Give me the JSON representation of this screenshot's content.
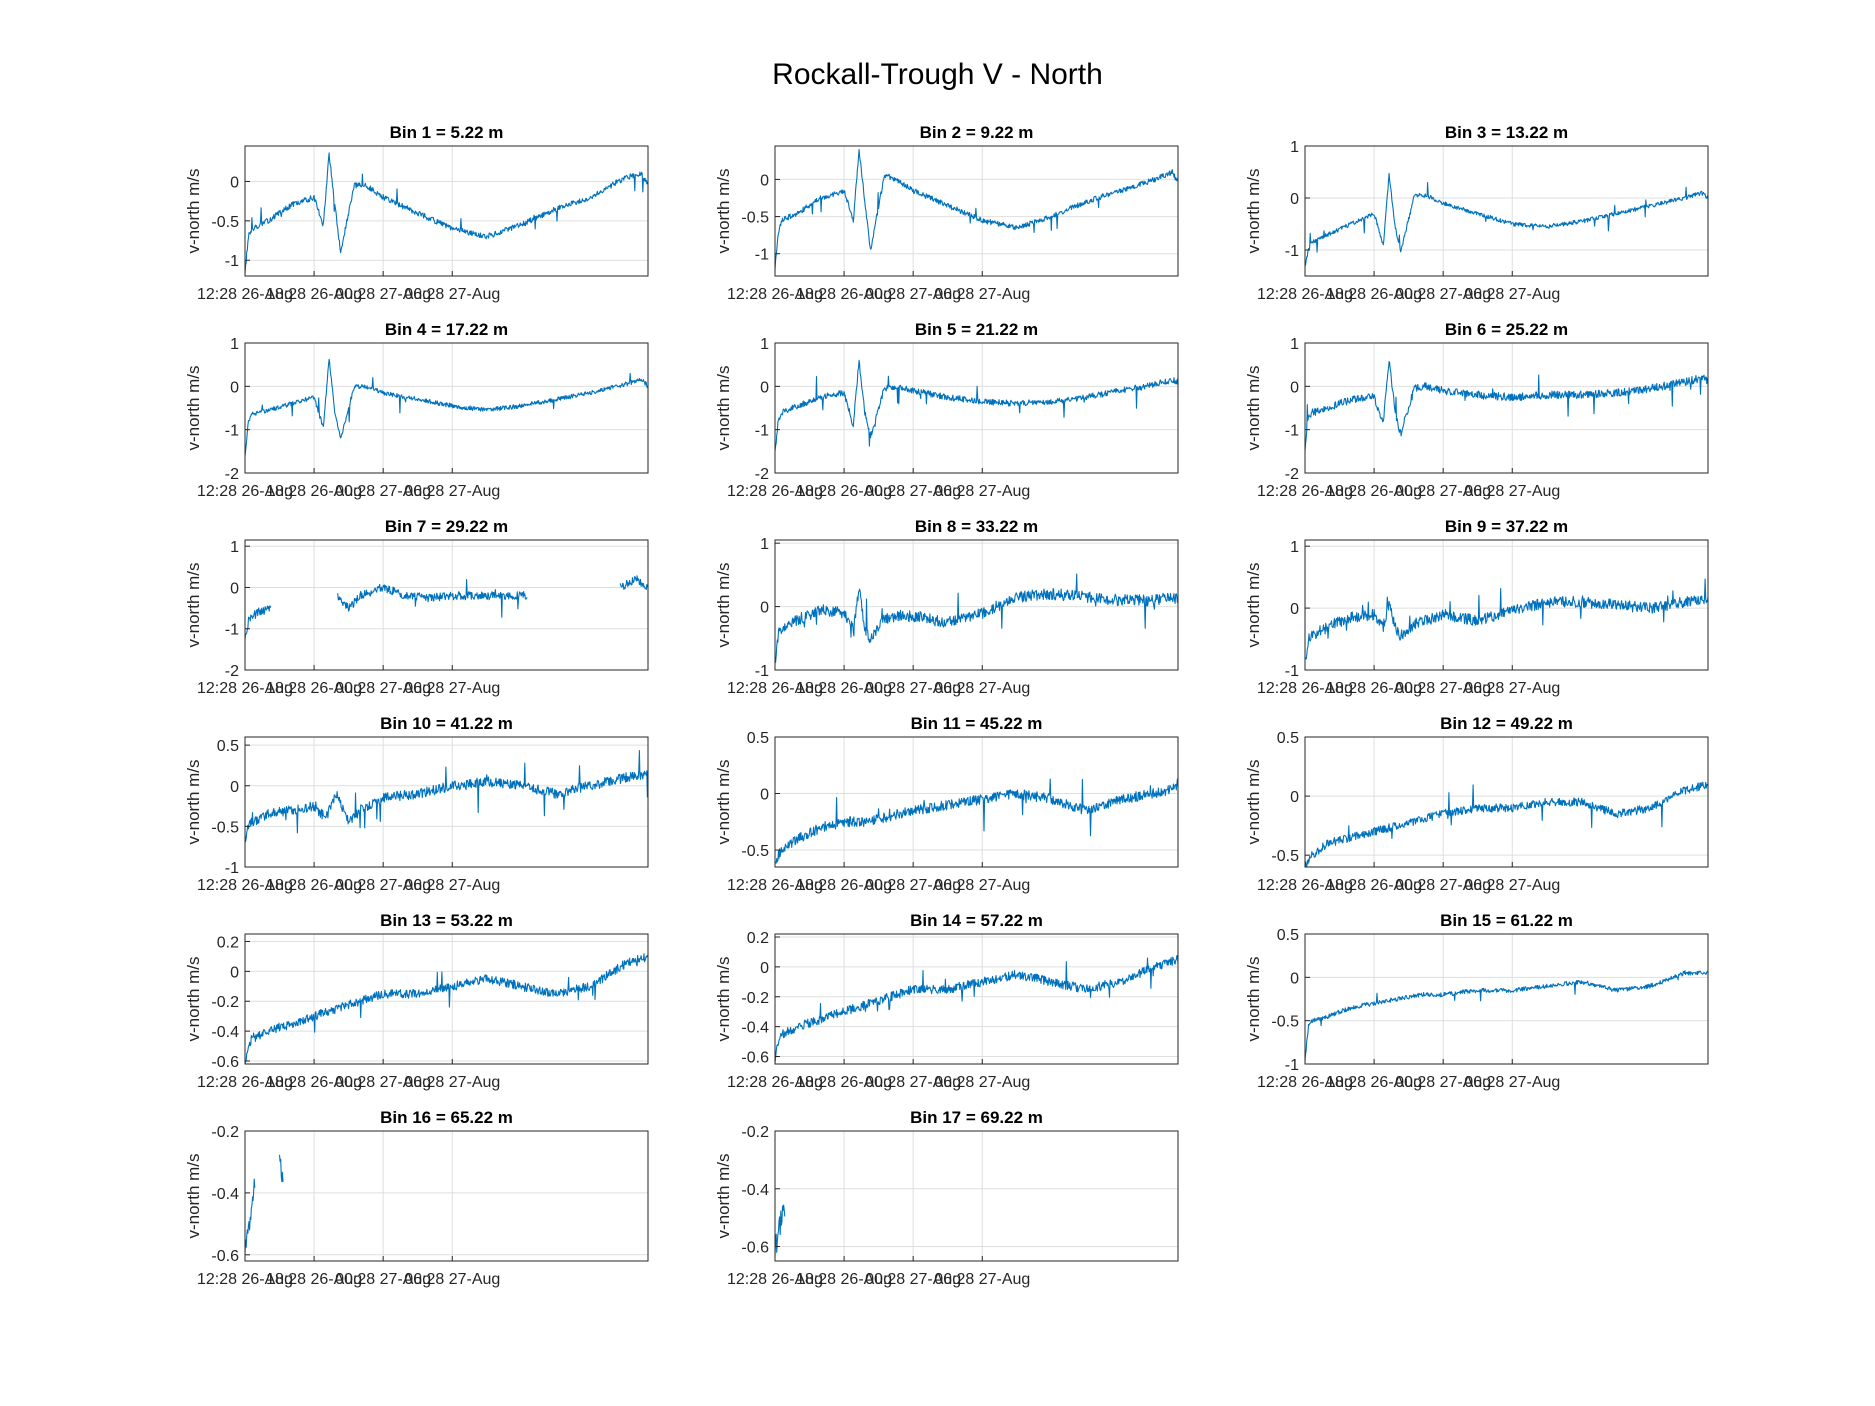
{
  "figure": {
    "title": "Rockall-Trough V - North"
  },
  "colors": {
    "series": "#0072BD",
    "grid": "#dfdfdf",
    "axis": "#262626",
    "text": "#262626"
  },
  "chart_data": [
    {
      "type": "line",
      "title": "Bin 1 = 5.22 m",
      "ylabel": "v-north m/s",
      "ylim": [
        -1.2,
        0.45
      ],
      "yticks": [
        -1,
        -0.5,
        0
      ],
      "ytick_labels": [
        "-1",
        "-0.5",
        "0"
      ],
      "xticks": [
        "12:28 26-Aug",
        "18:28 26-Aug",
        "00:28 27-Aug",
        "06:28 27-Aug"
      ],
      "grid": true,
      "coverage": [
        0,
        1
      ],
      "noise": 0.035,
      "spike": 0.25,
      "x_hours": [
        0,
        0.3,
        0.6,
        2,
        4,
        6,
        6.8,
        7.3,
        7.8,
        8.3,
        9.5,
        10.5,
        12,
        15,
        18,
        21,
        24,
        27,
        30,
        33,
        34.5,
        35
      ],
      "y": [
        -1.15,
        -0.7,
        -0.6,
        -0.5,
        -0.3,
        -0.2,
        -0.55,
        0.35,
        -0.3,
        -0.9,
        -0.05,
        -0.05,
        -0.2,
        -0.4,
        -0.6,
        -0.7,
        -0.55,
        -0.35,
        -0.2,
        0.05,
        0.1,
        -0.05
      ]
    },
    {
      "type": "line",
      "title": "Bin 2 = 9.22 m",
      "ylabel": "v-north m/s",
      "ylim": [
        -1.3,
        0.45
      ],
      "yticks": [
        -1,
        -0.5,
        0
      ],
      "ytick_labels": [
        "-1",
        "-0.5",
        "0"
      ],
      "xticks": [
        "12:28 26-Aug",
        "18:28 26-Aug",
        "00:28 27-Aug",
        "06:28 27-Aug"
      ],
      "grid": true,
      "coverage": [
        0,
        1
      ],
      "noise": 0.035,
      "spike": 0.25,
      "x_hours": [
        0,
        0.3,
        0.6,
        2,
        4,
        6,
        6.8,
        7.3,
        7.8,
        8.3,
        9.5,
        10.5,
        12,
        15,
        18,
        21,
        24,
        27,
        30,
        33,
        34.5,
        35
      ],
      "y": [
        -1.2,
        -0.7,
        -0.55,
        -0.45,
        -0.25,
        -0.15,
        -0.55,
        0.4,
        -0.3,
        -0.95,
        0.05,
        0.0,
        -0.15,
        -0.35,
        -0.55,
        -0.65,
        -0.5,
        -0.3,
        -0.15,
        0.0,
        0.1,
        -0.05
      ]
    },
    {
      "type": "line",
      "title": "Bin 3 = 13.22 m",
      "ylabel": "v-north m/s",
      "ylim": [
        -1.5,
        1
      ],
      "yticks": [
        -1,
        0,
        1
      ],
      "ytick_labels": [
        "-1",
        "0",
        "1"
      ],
      "xticks": [
        "12:28 26-Aug",
        "18:28 26-Aug",
        "00:28 27-Aug",
        "06:28 27-Aug"
      ],
      "grid": true,
      "coverage": [
        0,
        1
      ],
      "noise": 0.04,
      "spike": 0.3,
      "x_hours": [
        0,
        0.3,
        0.6,
        2,
        4,
        6,
        6.8,
        7.3,
        7.8,
        8.3,
        9.5,
        10.5,
        12,
        15,
        18,
        21,
        24,
        27,
        30,
        33,
        34.5,
        35
      ],
      "y": [
        -1.3,
        -1.0,
        -0.85,
        -0.7,
        -0.5,
        -0.3,
        -0.9,
        0.45,
        -0.5,
        -1.05,
        0.05,
        0.05,
        -0.1,
        -0.3,
        -0.5,
        -0.55,
        -0.45,
        -0.3,
        -0.15,
        0.0,
        0.1,
        0.0
      ]
    },
    {
      "type": "line",
      "title": "Bin 4 = 17.22 m",
      "ylabel": "v-north m/s",
      "ylim": [
        -2,
        1
      ],
      "yticks": [
        -2,
        -1,
        0,
        1
      ],
      "ytick_labels": [
        "-2",
        "-1",
        "0",
        "1"
      ],
      "xticks": [
        "12:28 26-Aug",
        "18:28 26-Aug",
        "00:28 27-Aug",
        "06:28 27-Aug"
      ],
      "grid": true,
      "coverage": [
        0,
        1
      ],
      "noise": 0.05,
      "spike": 0.35,
      "x_hours": [
        0,
        0.3,
        0.6,
        2,
        4,
        6,
        6.8,
        7.3,
        7.8,
        8.3,
        9.5,
        10.5,
        12,
        15,
        18,
        21,
        24,
        27,
        30,
        33,
        34.5,
        35
      ],
      "y": [
        -1.6,
        -0.8,
        -0.65,
        -0.55,
        -0.4,
        -0.25,
        -0.95,
        0.65,
        -0.6,
        -1.2,
        0.0,
        0.0,
        -0.15,
        -0.3,
        -0.45,
        -0.55,
        -0.45,
        -0.3,
        -0.15,
        0.05,
        0.15,
        0.0
      ]
    },
    {
      "type": "line",
      "title": "Bin 5 = 21.22 m",
      "ylabel": "v-north m/s",
      "ylim": [
        -2,
        1
      ],
      "yticks": [
        -2,
        -1,
        0,
        1
      ],
      "ytick_labels": [
        "-2",
        "-1",
        "0",
        "1"
      ],
      "xticks": [
        "12:28 26-Aug",
        "18:28 26-Aug",
        "00:28 27-Aug",
        "06:28 27-Aug"
      ],
      "grid": true,
      "coverage": [
        0,
        1
      ],
      "noise": 0.07,
      "spike": 0.45,
      "x_hours": [
        0,
        0.3,
        0.6,
        2,
        4,
        6,
        6.8,
        7.3,
        7.8,
        8.3,
        9.5,
        10.5,
        12,
        15,
        18,
        21,
        24,
        27,
        30,
        33,
        34.5,
        35
      ],
      "y": [
        -1.5,
        -0.75,
        -0.6,
        -0.45,
        -0.25,
        -0.15,
        -0.9,
        0.6,
        -0.6,
        -1.15,
        -0.05,
        0.0,
        -0.1,
        -0.25,
        -0.35,
        -0.4,
        -0.35,
        -0.25,
        -0.1,
        0.05,
        0.15,
        0.1
      ]
    },
    {
      "type": "line",
      "title": "Bin 6 = 25.22 m",
      "ylabel": "v-north m/s",
      "ylim": [
        -2,
        1
      ],
      "yticks": [
        -2,
        -1,
        0,
        1
      ],
      "ytick_labels": [
        "-2",
        "-1",
        "0",
        "1"
      ],
      "xticks": [
        "12:28 26-Aug",
        "18:28 26-Aug",
        "00:28 27-Aug",
        "06:28 27-Aug"
      ],
      "grid": true,
      "coverage": [
        0,
        1
      ],
      "noise": 0.09,
      "spike": 0.55,
      "x_hours": [
        0,
        0.3,
        0.6,
        2,
        4,
        6,
        6.8,
        7.3,
        7.8,
        8.3,
        9.5,
        10.5,
        12,
        15,
        18,
        21,
        24,
        27,
        30,
        33,
        34.5,
        35
      ],
      "y": [
        -1.5,
        -0.7,
        -0.6,
        -0.5,
        -0.3,
        -0.25,
        -0.85,
        0.6,
        -0.55,
        -1.1,
        -0.05,
        0.0,
        -0.1,
        -0.2,
        -0.25,
        -0.2,
        -0.2,
        -0.15,
        -0.05,
        0.1,
        0.2,
        0.1
      ]
    },
    {
      "type": "line",
      "title": "Bin 7 = 29.22 m",
      "ylabel": "v-north m/s",
      "ylim": [
        -2,
        1.15
      ],
      "yticks": [
        -2,
        -1,
        0,
        1
      ],
      "ytick_labels": [
        "-2",
        "-1",
        "0",
        "1"
      ],
      "xticks": [
        "12:28 26-Aug",
        "18:28 26-Aug",
        "00:28 27-Aug",
        "06:28 27-Aug"
      ],
      "grid": true,
      "coverage": [
        0,
        0.065,
        0.23,
        0.7,
        0.93,
        1
      ],
      "noise": 0.1,
      "spike": 0.5,
      "x_hours": [
        0,
        0.3,
        0.6,
        1.2,
        2.2,
        8,
        9,
        10,
        12,
        14,
        16,
        18,
        20,
        22,
        24,
        32.5,
        34,
        35
      ],
      "y": [
        -1.3,
        -0.8,
        -0.7,
        -0.6,
        -0.5,
        -0.2,
        -0.5,
        -0.2,
        0.0,
        -0.2,
        -0.25,
        -0.2,
        -0.2,
        -0.2,
        -0.2,
        0.0,
        0.2,
        0.0
      ]
    },
    {
      "type": "line",
      "title": "Bin 8 = 33.22 m",
      "ylabel": "v-north m/s",
      "ylim": [
        -1,
        1.05
      ],
      "yticks": [
        -1,
        0,
        1
      ],
      "ytick_labels": [
        "-1",
        "0",
        "1"
      ],
      "xticks": [
        "12:28 26-Aug",
        "18:28 26-Aug",
        "00:28 27-Aug",
        "06:28 27-Aug"
      ],
      "grid": true,
      "coverage": [
        0,
        1
      ],
      "noise": 0.09,
      "spike": 0.5,
      "x_hours": [
        0,
        0.3,
        0.6,
        2,
        4,
        6,
        6.8,
        7.3,
        7.8,
        8.3,
        9.5,
        10.5,
        12,
        15,
        18,
        21,
        24,
        27,
        30,
        33,
        34.5,
        35
      ],
      "y": [
        -0.9,
        -0.4,
        -0.35,
        -0.2,
        -0.05,
        -0.1,
        -0.35,
        0.3,
        -0.4,
        -0.5,
        -0.2,
        -0.15,
        -0.15,
        -0.25,
        -0.1,
        0.15,
        0.2,
        0.15,
        0.1,
        0.1,
        0.15,
        0.1
      ]
    },
    {
      "type": "line",
      "title": "Bin 9 = 37.22 m",
      "ylabel": "v-north m/s",
      "ylim": [
        -1,
        1.1
      ],
      "yticks": [
        -1,
        0,
        1
      ],
      "ytick_labels": [
        "-1",
        "0",
        "1"
      ],
      "xticks": [
        "12:28 26-Aug",
        "18:28 26-Aug",
        "00:28 27-Aug",
        "06:28 27-Aug"
      ],
      "grid": true,
      "coverage": [
        0,
        1
      ],
      "noise": 0.09,
      "spike": 0.5,
      "x_hours": [
        0,
        0.3,
        0.6,
        2,
        4,
        6,
        6.8,
        7.3,
        7.8,
        8.3,
        9.5,
        10.5,
        12,
        15,
        18,
        21,
        24,
        27,
        30,
        33,
        34.5,
        35
      ],
      "y": [
        -0.85,
        -0.5,
        -0.45,
        -0.3,
        -0.15,
        -0.1,
        -0.3,
        0.1,
        -0.3,
        -0.45,
        -0.25,
        -0.2,
        -0.1,
        -0.2,
        -0.05,
        0.1,
        0.1,
        0.05,
        0.0,
        0.1,
        0.15,
        0.1
      ]
    },
    {
      "type": "line",
      "title": "Bin 10 = 41.22 m",
      "ylabel": "v-north m/s",
      "ylim": [
        -1,
        0.6
      ],
      "yticks": [
        -1,
        -0.5,
        0,
        0.5
      ],
      "ytick_labels": [
        "-1",
        "-0.5",
        "0",
        "0.5"
      ],
      "xticks": [
        "12:28 26-Aug",
        "18:28 26-Aug",
        "00:28 27-Aug",
        "06:28 27-Aug"
      ],
      "grid": true,
      "coverage": [
        0,
        1
      ],
      "noise": 0.06,
      "spike": 0.35,
      "x_hours": [
        0,
        0.3,
        0.6,
        2,
        4,
        6,
        7,
        8,
        9,
        10,
        12,
        15,
        18,
        21,
        24,
        27,
        30,
        33,
        35
      ],
      "y": [
        -0.7,
        -0.5,
        -0.45,
        -0.35,
        -0.3,
        -0.25,
        -0.4,
        -0.1,
        -0.45,
        -0.3,
        -0.15,
        -0.1,
        0.0,
        0.05,
        0.0,
        -0.1,
        0.0,
        0.1,
        0.15
      ]
    },
    {
      "type": "line",
      "title": "Bin 11 = 45.22 m",
      "ylabel": "v-north m/s",
      "ylim": [
        -0.65,
        0.5
      ],
      "yticks": [
        -0.5,
        0,
        0.5
      ],
      "ytick_labels": [
        "-0.5",
        "0",
        "0.5"
      ],
      "xticks": [
        "12:28 26-Aug",
        "18:28 26-Aug",
        "00:28 27-Aug",
        "06:28 27-Aug"
      ],
      "grid": true,
      "coverage": [
        0,
        1
      ],
      "noise": 0.045,
      "spike": 0.25,
      "x_hours": [
        0,
        0.3,
        0.6,
        2,
        4,
        6,
        8,
        10,
        12,
        15,
        18,
        21,
        24,
        27,
        30,
        33,
        35
      ],
      "y": [
        -0.65,
        -0.55,
        -0.5,
        -0.4,
        -0.3,
        -0.25,
        -0.25,
        -0.2,
        -0.15,
        -0.1,
        -0.05,
        0.0,
        -0.05,
        -0.15,
        -0.05,
        0.0,
        0.05
      ]
    },
    {
      "type": "line",
      "title": "Bin 12 = 49.22 m",
      "ylabel": "v-north m/s",
      "ylim": [
        -0.6,
        0.5
      ],
      "yticks": [
        -0.5,
        0,
        0.5
      ],
      "ytick_labels": [
        "-0.5",
        "0",
        "0.5"
      ],
      "xticks": [
        "12:28 26-Aug",
        "18:28 26-Aug",
        "00:28 27-Aug",
        "06:28 27-Aug"
      ],
      "grid": true,
      "coverage": [
        0,
        1
      ],
      "noise": 0.035,
      "spike": 0.2,
      "x_hours": [
        0,
        0.3,
        0.6,
        2,
        4,
        6,
        8,
        10,
        12,
        15,
        18,
        21,
        24,
        27,
        30,
        33,
        35
      ],
      "y": [
        -0.6,
        -0.55,
        -0.5,
        -0.4,
        -0.35,
        -0.3,
        -0.25,
        -0.2,
        -0.15,
        -0.1,
        -0.1,
        -0.05,
        -0.05,
        -0.15,
        -0.1,
        0.05,
        0.1
      ]
    },
    {
      "type": "line",
      "title": "Bin 13 = 53.22 m",
      "ylabel": "v-north m/s",
      "ylim": [
        -0.62,
        0.25
      ],
      "yticks": [
        -0.6,
        -0.4,
        -0.2,
        0,
        0.2
      ],
      "ytick_labels": [
        "-0.6",
        "-0.4",
        "-0.2",
        "0",
        "0.2"
      ],
      "xticks": [
        "12:28 26-Aug",
        "18:28 26-Aug",
        "00:28 27-Aug",
        "06:28 27-Aug"
      ],
      "grid": true,
      "coverage": [
        0,
        1
      ],
      "noise": 0.03,
      "spike": 0.15,
      "x_hours": [
        0,
        0.3,
        0.6,
        2,
        4,
        6,
        8,
        10,
        12,
        15,
        18,
        21,
        24,
        27,
        30,
        33,
        35
      ],
      "y": [
        -0.6,
        -0.5,
        -0.45,
        -0.4,
        -0.35,
        -0.3,
        -0.25,
        -0.2,
        -0.15,
        -0.15,
        -0.1,
        -0.05,
        -0.1,
        -0.15,
        -0.1,
        0.05,
        0.1
      ]
    },
    {
      "type": "line",
      "title": "Bin 14 = 57.22 m",
      "ylabel": "v-north m/s",
      "ylim": [
        -0.65,
        0.22
      ],
      "yticks": [
        -0.6,
        -0.4,
        -0.2,
        0,
        0.2
      ],
      "ytick_labels": [
        "-0.6",
        "-0.4",
        "-0.2",
        "0",
        "0.2"
      ],
      "xticks": [
        "12:28 26-Aug",
        "18:28 26-Aug",
        "00:28 27-Aug",
        "06:28 27-Aug"
      ],
      "grid": true,
      "coverage": [
        0,
        1
      ],
      "noise": 0.03,
      "spike": 0.15,
      "x_hours": [
        0,
        0.3,
        0.6,
        2,
        4,
        6,
        8,
        10,
        12,
        15,
        18,
        21,
        24,
        27,
        30,
        33,
        35
      ],
      "y": [
        -0.62,
        -0.5,
        -0.45,
        -0.4,
        -0.35,
        -0.3,
        -0.25,
        -0.2,
        -0.15,
        -0.15,
        -0.1,
        -0.05,
        -0.1,
        -0.15,
        -0.1,
        0.0,
        0.05
      ]
    },
    {
      "type": "line",
      "title": "Bin 15 = 61.22 m",
      "ylabel": "v-north m/s",
      "ylim": [
        -1,
        0.5
      ],
      "yticks": [
        -1,
        -0.5,
        0,
        0.5
      ],
      "ytick_labels": [
        "-1",
        "-0.5",
        "0",
        "0.5"
      ],
      "xticks": [
        "12:28 26-Aug",
        "18:28 26-Aug",
        "00:28 27-Aug",
        "06:28 27-Aug"
      ],
      "grid": true,
      "coverage": [
        0,
        1
      ],
      "noise": 0.025,
      "spike": 0.15,
      "x_hours": [
        0,
        0.3,
        0.6,
        2,
        4,
        6,
        8,
        10,
        12,
        15,
        18,
        21,
        24,
        27,
        30,
        33,
        35
      ],
      "y": [
        -0.95,
        -0.55,
        -0.5,
        -0.45,
        -0.35,
        -0.3,
        -0.25,
        -0.2,
        -0.2,
        -0.15,
        -0.15,
        -0.1,
        -0.05,
        -0.15,
        -0.1,
        0.05,
        0.05
      ]
    },
    {
      "type": "line",
      "title": "Bin 16 = 65.22 m",
      "ylabel": "v-north m/s",
      "ylim": [
        -0.62,
        -0.2
      ],
      "yticks": [
        -0.6,
        -0.4,
        -0.2
      ],
      "ytick_labels": [
        "-0.6",
        "-0.4",
        "-0.2"
      ],
      "xticks": [
        "12:28 26-Aug",
        "18:28 26-Aug",
        "00:28 27-Aug",
        "06:28 27-Aug"
      ],
      "grid": true,
      "coverage": [
        0,
        0.025,
        0.085,
        0.095
      ],
      "noise": 0.03,
      "spike": 0.1,
      "x_hours": [
        0,
        0.3,
        0.6,
        0.9,
        3.0,
        3.3
      ],
      "y": [
        -0.58,
        -0.52,
        -0.45,
        -0.35,
        -0.3,
        -0.35
      ]
    },
    {
      "type": "line",
      "title": "Bin 17 = 69.22 m",
      "ylabel": "v-north m/s",
      "ylim": [
        -0.65,
        -0.2
      ],
      "yticks": [
        -0.6,
        -0.4,
        -0.2
      ],
      "ytick_labels": [
        "-0.6",
        "-0.4",
        "-0.2"
      ],
      "xticks": [
        "12:28 26-Aug",
        "18:28 26-Aug",
        "00:28 27-Aug",
        "06:28 27-Aug"
      ],
      "grid": true,
      "coverage": [
        0,
        0.025
      ],
      "noise": 0.04,
      "spike": 0.15,
      "x_hours": [
        0,
        0.3,
        0.6,
        0.9
      ],
      "y": [
        -0.62,
        -0.55,
        -0.5,
        -0.45
      ]
    }
  ]
}
